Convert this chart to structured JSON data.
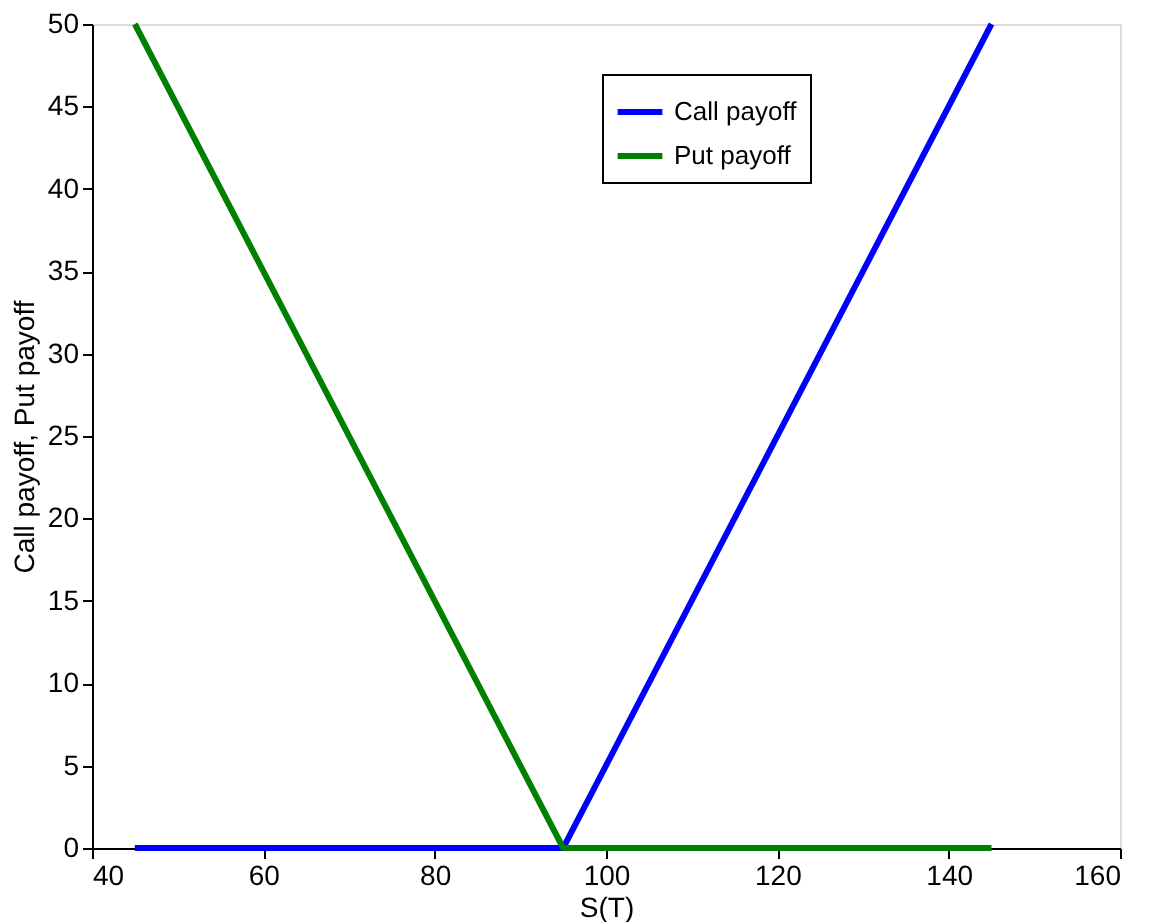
{
  "chart_data": {
    "type": "line",
    "xlabel": "S(T)",
    "ylabel": "Call payoff, Put payoff",
    "series": [
      {
        "name": "Call payoff",
        "color": "#0000ff",
        "x": [
          45,
          95,
          145
        ],
        "values": [
          0,
          0,
          50
        ]
      },
      {
        "name": "Put payoff",
        "color": "#008000",
        "x": [
          45,
          95,
          145
        ],
        "values": [
          50,
          0,
          0
        ]
      }
    ],
    "xlim": [
      40,
      160
    ],
    "xticks": [
      40,
      60,
      80,
      100,
      120,
      140,
      160
    ],
    "ylim": [
      0,
      50
    ],
    "yticks": [
      0,
      5,
      10,
      15,
      20,
      25,
      30,
      35,
      40,
      45,
      50
    ],
    "grid": false,
    "legend": "top right",
    "marker": "none",
    "line_style": "solid"
  }
}
